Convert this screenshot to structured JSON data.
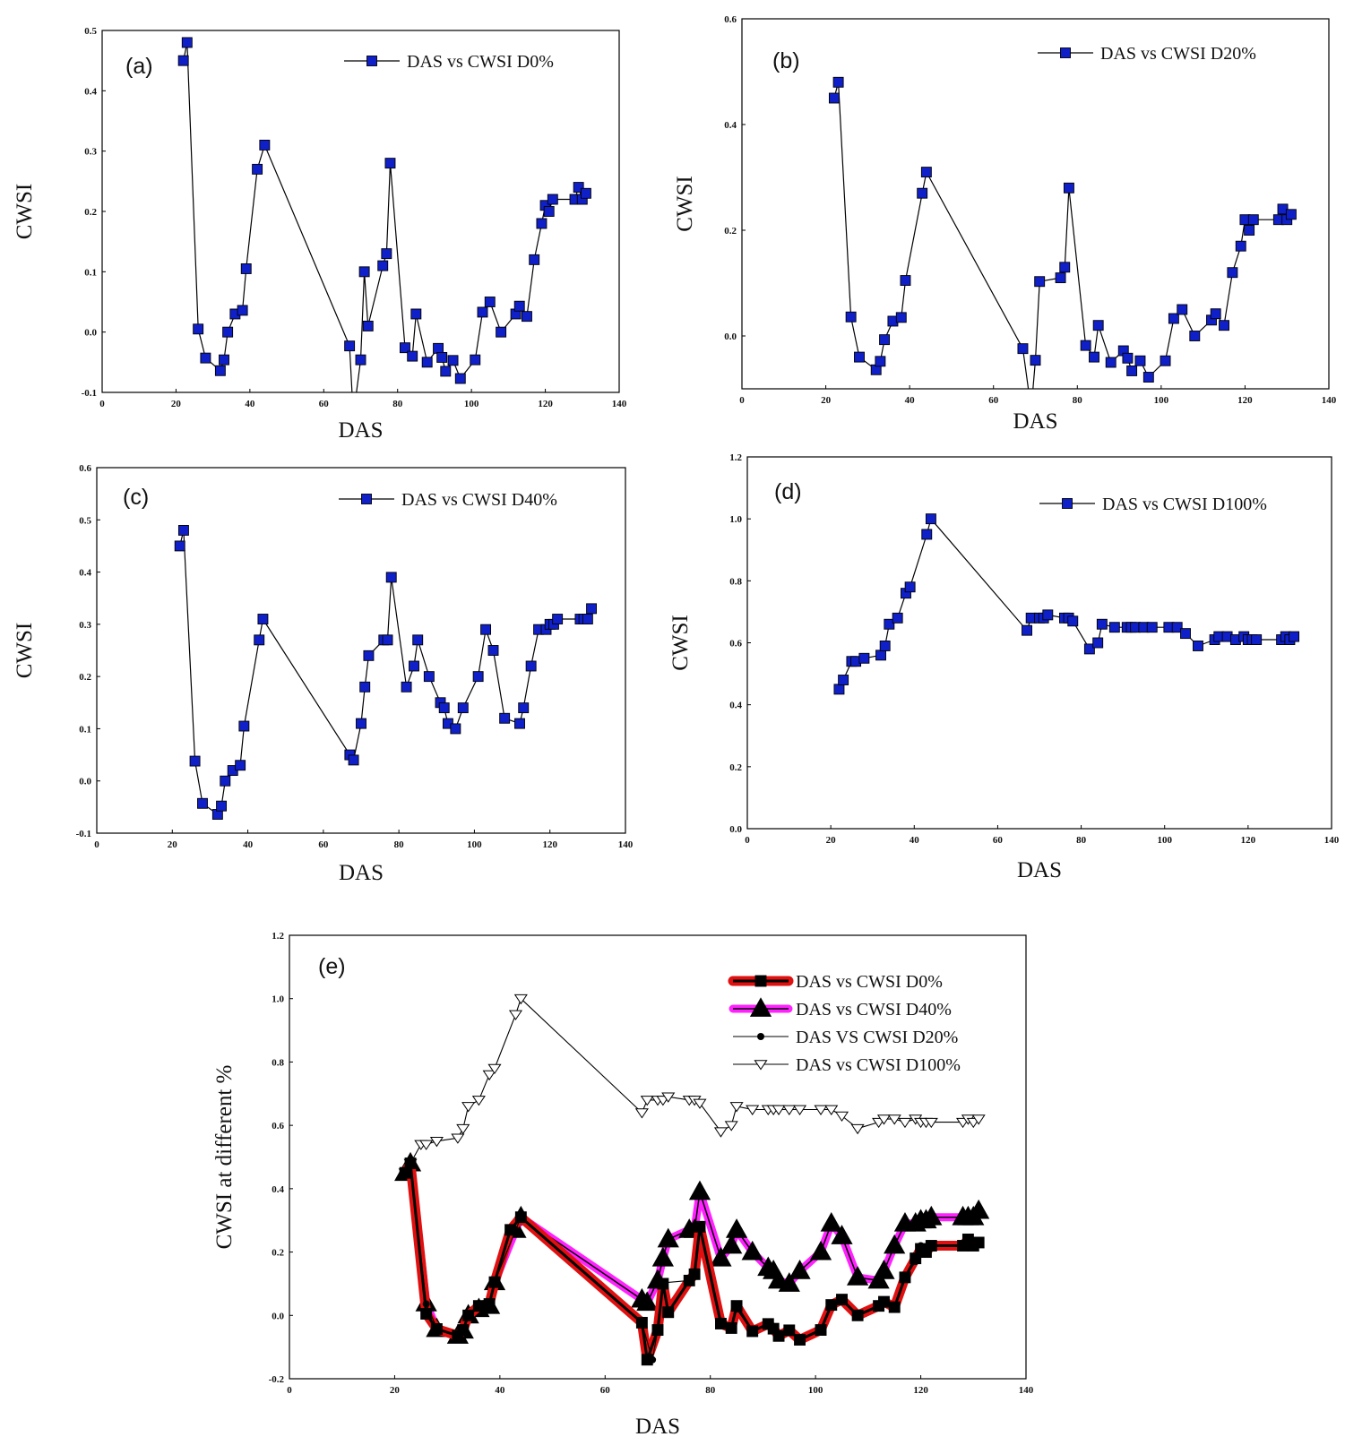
{
  "chart_data": [
    {
      "id": "a",
      "type": "line",
      "panel_label": "(a)",
      "xlabel": "DAS",
      "ylabel": "CWSI",
      "xlim": [
        0,
        140
      ],
      "ylim": [
        -0.1,
        0.5
      ],
      "xticks": [
        "0",
        "20",
        "40",
        "60",
        "80",
        "100",
        "120",
        "140"
      ],
      "yticks": [
        "-0.1",
        "0.0",
        "0.1",
        "0.2",
        "0.3",
        "0.4",
        "0.5"
      ],
      "legend_position": "top-right",
      "series": [
        {
          "name": "DAS vs CWSI D0%",
          "marker": "square",
          "color": "#1020c8",
          "x": [
            22,
            23,
            26,
            28,
            32,
            33,
            34,
            36,
            38,
            39,
            42,
            44,
            67,
            68,
            70,
            71,
            72,
            76,
            77,
            78,
            82,
            84,
            85,
            88,
            91,
            92,
            93,
            95,
            97,
            101,
            103,
            105,
            108,
            112,
            113,
            115,
            117,
            119,
            120,
            121,
            122,
            128,
            129,
            130,
            131
          ],
          "y": [
            0.45,
            0.48,
            0.005,
            -0.043,
            -0.064,
            -0.046,
            0.0,
            0.03,
            0.036,
            0.105,
            0.27,
            0.31,
            -0.023,
            -0.14,
            -0.046,
            0.1,
            0.01,
            0.11,
            0.13,
            0.28,
            -0.026,
            -0.04,
            0.03,
            -0.05,
            -0.027,
            -0.042,
            -0.065,
            -0.047,
            -0.077,
            -0.046,
            0.033,
            0.05,
            0.0,
            0.03,
            0.043,
            0.026,
            0.12,
            0.18,
            0.21,
            0.2,
            0.22,
            0.22,
            0.24,
            0.22,
            0.23
          ]
        }
      ]
    },
    {
      "id": "b",
      "type": "line",
      "panel_label": "(b)",
      "xlabel": "DAS",
      "ylabel": "CWSI",
      "xlim": [
        0,
        140
      ],
      "ylim": [
        -0.1,
        0.6
      ],
      "xticks": [
        "0",
        "20",
        "40",
        "60",
        "80",
        "100",
        "120",
        "140"
      ],
      "yticks": [
        "0.0",
        "0.2",
        "0.4",
        "0.6"
      ],
      "legend_position": "top-right",
      "series": [
        {
          "name": "DAS vs CWSI D20%",
          "marker": "square",
          "color": "#1020c8",
          "x": [
            22,
            23,
            26,
            28,
            32,
            33,
            34,
            36,
            38,
            39,
            43,
            44,
            67,
            69,
            70,
            71,
            76,
            77,
            78,
            82,
            84,
            85,
            88,
            91,
            92,
            93,
            95,
            97,
            101,
            103,
            105,
            108,
            112,
            113,
            115,
            117,
            119,
            120,
            121,
            122,
            128,
            129,
            130,
            131
          ],
          "y": [
            0.45,
            0.48,
            0.036,
            -0.04,
            -0.064,
            -0.048,
            -0.007,
            0.028,
            0.035,
            0.105,
            0.27,
            0.31,
            -0.024,
            -0.14,
            -0.046,
            0.103,
            0.11,
            0.13,
            0.28,
            -0.018,
            -0.04,
            0.02,
            -0.05,
            -0.028,
            -0.042,
            -0.066,
            -0.047,
            -0.078,
            -0.047,
            0.033,
            0.05,
            0.0,
            0.03,
            0.042,
            0.02,
            0.12,
            0.17,
            0.22,
            0.2,
            0.22,
            0.22,
            0.24,
            0.22,
            0.23
          ]
        }
      ]
    },
    {
      "id": "c",
      "type": "line",
      "panel_label": "(c)",
      "xlabel": "DAS",
      "ylabel": "CWSI",
      "xlim": [
        0,
        140
      ],
      "ylim": [
        -0.1,
        0.6
      ],
      "xticks": [
        "0",
        "20",
        "40",
        "60",
        "80",
        "100",
        "120",
        "140"
      ],
      "yticks": [
        "-0.1",
        "0.0",
        "0.1",
        "0.2",
        "0.3",
        "0.4",
        "0.5",
        "0.6"
      ],
      "legend_position": "top-right",
      "series": [
        {
          "name": "DAS vs CWSI D40%",
          "marker": "square",
          "color": "#1020c8",
          "x": [
            22,
            23,
            26,
            28,
            32,
            33,
            34,
            36,
            38,
            39,
            43,
            44,
            67,
            68,
            70,
            71,
            72,
            76,
            77,
            78,
            82,
            84,
            85,
            88,
            91,
            92,
            93,
            95,
            97,
            101,
            103,
            105,
            108,
            112,
            113,
            115,
            117,
            119,
            120,
            121,
            122,
            128,
            129,
            130,
            131
          ],
          "y": [
            0.45,
            0.48,
            0.038,
            -0.043,
            -0.064,
            -0.048,
            0.0,
            0.02,
            0.03,
            0.105,
            0.27,
            0.31,
            0.05,
            0.04,
            0.11,
            0.18,
            0.24,
            0.27,
            0.27,
            0.39,
            0.18,
            0.22,
            0.27,
            0.2,
            0.15,
            0.14,
            0.11,
            0.1,
            0.14,
            0.2,
            0.29,
            0.25,
            0.12,
            0.11,
            0.14,
            0.22,
            0.29,
            0.29,
            0.3,
            0.3,
            0.31,
            0.31,
            0.31,
            0.31,
            0.33
          ]
        }
      ]
    },
    {
      "id": "d",
      "type": "line",
      "panel_label": "(d)",
      "xlabel": "DAS",
      "ylabel": "CWSI",
      "xlim": [
        0,
        140
      ],
      "ylim": [
        0.0,
        1.2
      ],
      "xticks": [
        "0",
        "20",
        "40",
        "60",
        "80",
        "100",
        "120",
        "140"
      ],
      "yticks": [
        "0.0",
        "0.2",
        "0.4",
        "0.6",
        "0.8",
        "1.0",
        "1.2"
      ],
      "legend_position": "top-right",
      "series": [
        {
          "name": "DAS vs CWSI D100%",
          "marker": "square",
          "color": "#1020c8",
          "x": [
            22,
            23,
            25,
            26,
            28,
            32,
            33,
            34,
            36,
            38,
            39,
            43,
            44,
            67,
            68,
            70,
            71,
            72,
            76,
            77,
            78,
            82,
            84,
            85,
            88,
            91,
            92,
            93,
            95,
            97,
            101,
            103,
            105,
            108,
            112,
            113,
            115,
            117,
            119,
            120,
            121,
            122,
            128,
            129,
            130,
            131
          ],
          "y": [
            0.45,
            0.48,
            0.54,
            0.54,
            0.55,
            0.56,
            0.59,
            0.66,
            0.68,
            0.76,
            0.78,
            0.95,
            1.0,
            0.64,
            0.68,
            0.68,
            0.68,
            0.69,
            0.68,
            0.68,
            0.67,
            0.58,
            0.6,
            0.66,
            0.65,
            0.65,
            0.65,
            0.65,
            0.65,
            0.65,
            0.65,
            0.65,
            0.63,
            0.59,
            0.61,
            0.62,
            0.62,
            0.61,
            0.62,
            0.61,
            0.61,
            0.61,
            0.61,
            0.62,
            0.61,
            0.62
          ]
        }
      ]
    },
    {
      "id": "e",
      "type": "line",
      "panel_label": "(e)",
      "xlabel": "DAS",
      "ylabel": "CWSI at different %",
      "xlim": [
        0,
        140
      ],
      "ylim": [
        -0.2,
        1.2
      ],
      "xticks": [
        "0",
        "20",
        "40",
        "60",
        "80",
        "100",
        "120",
        "140"
      ],
      "yticks": [
        "-0.2",
        "0.0",
        "0.2",
        "0.4",
        "0.6",
        "0.8",
        "1.0",
        "1.2"
      ],
      "legend_position": "top-right",
      "series": [
        {
          "name": "DAS vs CWSI D0%",
          "marker": "square",
          "color": "#e01010",
          "x": [
            22,
            23,
            26,
            28,
            32,
            33,
            34,
            36,
            38,
            39,
            42,
            44,
            67,
            68,
            70,
            71,
            72,
            76,
            77,
            78,
            82,
            84,
            85,
            88,
            91,
            92,
            93,
            95,
            97,
            101,
            103,
            105,
            108,
            112,
            113,
            115,
            117,
            119,
            120,
            121,
            122,
            128,
            129,
            130,
            131
          ],
          "y": [
            0.45,
            0.48,
            0.005,
            -0.043,
            -0.064,
            -0.046,
            0.0,
            0.03,
            0.036,
            0.105,
            0.27,
            0.31,
            -0.023,
            -0.14,
            -0.046,
            0.1,
            0.01,
            0.11,
            0.13,
            0.28,
            -0.026,
            -0.04,
            0.03,
            -0.05,
            -0.027,
            -0.042,
            -0.065,
            -0.047,
            -0.077,
            -0.046,
            0.033,
            0.05,
            0.0,
            0.03,
            0.043,
            0.026,
            0.12,
            0.18,
            0.21,
            0.2,
            0.22,
            0.22,
            0.24,
            0.22,
            0.23
          ]
        },
        {
          "name": "DAS vs CWSI D40%",
          "marker": "triangle-up",
          "color": "#ff22ff",
          "x": [
            22,
            23,
            26,
            28,
            32,
            33,
            34,
            36,
            38,
            39,
            43,
            44,
            67,
            68,
            70,
            71,
            72,
            76,
            77,
            78,
            82,
            84,
            85,
            88,
            91,
            92,
            93,
            95,
            97,
            101,
            103,
            105,
            108,
            112,
            113,
            115,
            117,
            119,
            120,
            121,
            122,
            128,
            129,
            130,
            131
          ],
          "y": [
            0.45,
            0.48,
            0.038,
            -0.043,
            -0.064,
            -0.048,
            0.0,
            0.02,
            0.03,
            0.105,
            0.27,
            0.31,
            0.05,
            0.04,
            0.11,
            0.18,
            0.24,
            0.27,
            0.27,
            0.39,
            0.18,
            0.22,
            0.27,
            0.2,
            0.15,
            0.14,
            0.11,
            0.1,
            0.14,
            0.2,
            0.29,
            0.25,
            0.12,
            0.11,
            0.14,
            0.22,
            0.29,
            0.29,
            0.3,
            0.3,
            0.31,
            0.31,
            0.31,
            0.31,
            0.33
          ]
        },
        {
          "name": "DAS VS CWSI D20%",
          "marker": "circle",
          "color": "#000000",
          "x": [
            22,
            23,
            26,
            28,
            32,
            33,
            34,
            36,
            38,
            39,
            43,
            44,
            67,
            69,
            70,
            71,
            76,
            77,
            78,
            82,
            84,
            85,
            88,
            91,
            92,
            93,
            95,
            97,
            101,
            103,
            105,
            108,
            112,
            113,
            115,
            117,
            119,
            120,
            121,
            122,
            128,
            129,
            130,
            131
          ],
          "y": [
            0.45,
            0.48,
            0.036,
            -0.04,
            -0.064,
            -0.048,
            -0.007,
            0.028,
            0.035,
            0.105,
            0.27,
            0.31,
            -0.024,
            -0.14,
            -0.046,
            0.103,
            0.11,
            0.13,
            0.28,
            -0.018,
            -0.04,
            0.02,
            -0.05,
            -0.028,
            -0.042,
            -0.066,
            -0.047,
            -0.078,
            -0.047,
            0.033,
            0.05,
            0.0,
            0.03,
            0.042,
            0.02,
            0.12,
            0.17,
            0.22,
            0.2,
            0.22,
            0.22,
            0.24,
            0.22,
            0.23
          ]
        },
        {
          "name": "DAS vs CWSI D100%",
          "marker": "triangle-down-open",
          "color": "#000000",
          "x": [
            22,
            23,
            25,
            26,
            28,
            32,
            33,
            34,
            36,
            38,
            39,
            43,
            44,
            67,
            68,
            70,
            71,
            72,
            76,
            77,
            78,
            82,
            84,
            85,
            88,
            91,
            92,
            93,
            95,
            97,
            101,
            103,
            105,
            108,
            112,
            113,
            115,
            117,
            119,
            120,
            121,
            122,
            128,
            129,
            130,
            131
          ],
          "y": [
            0.45,
            0.48,
            0.54,
            0.54,
            0.55,
            0.56,
            0.59,
            0.66,
            0.68,
            0.76,
            0.78,
            0.95,
            1.0,
            0.64,
            0.68,
            0.68,
            0.68,
            0.69,
            0.68,
            0.68,
            0.67,
            0.58,
            0.6,
            0.66,
            0.65,
            0.65,
            0.65,
            0.65,
            0.65,
            0.65,
            0.65,
            0.65,
            0.63,
            0.59,
            0.61,
            0.62,
            0.62,
            0.61,
            0.62,
            0.61,
            0.61,
            0.61,
            0.61,
            0.62,
            0.61,
            0.62
          ]
        }
      ]
    }
  ]
}
